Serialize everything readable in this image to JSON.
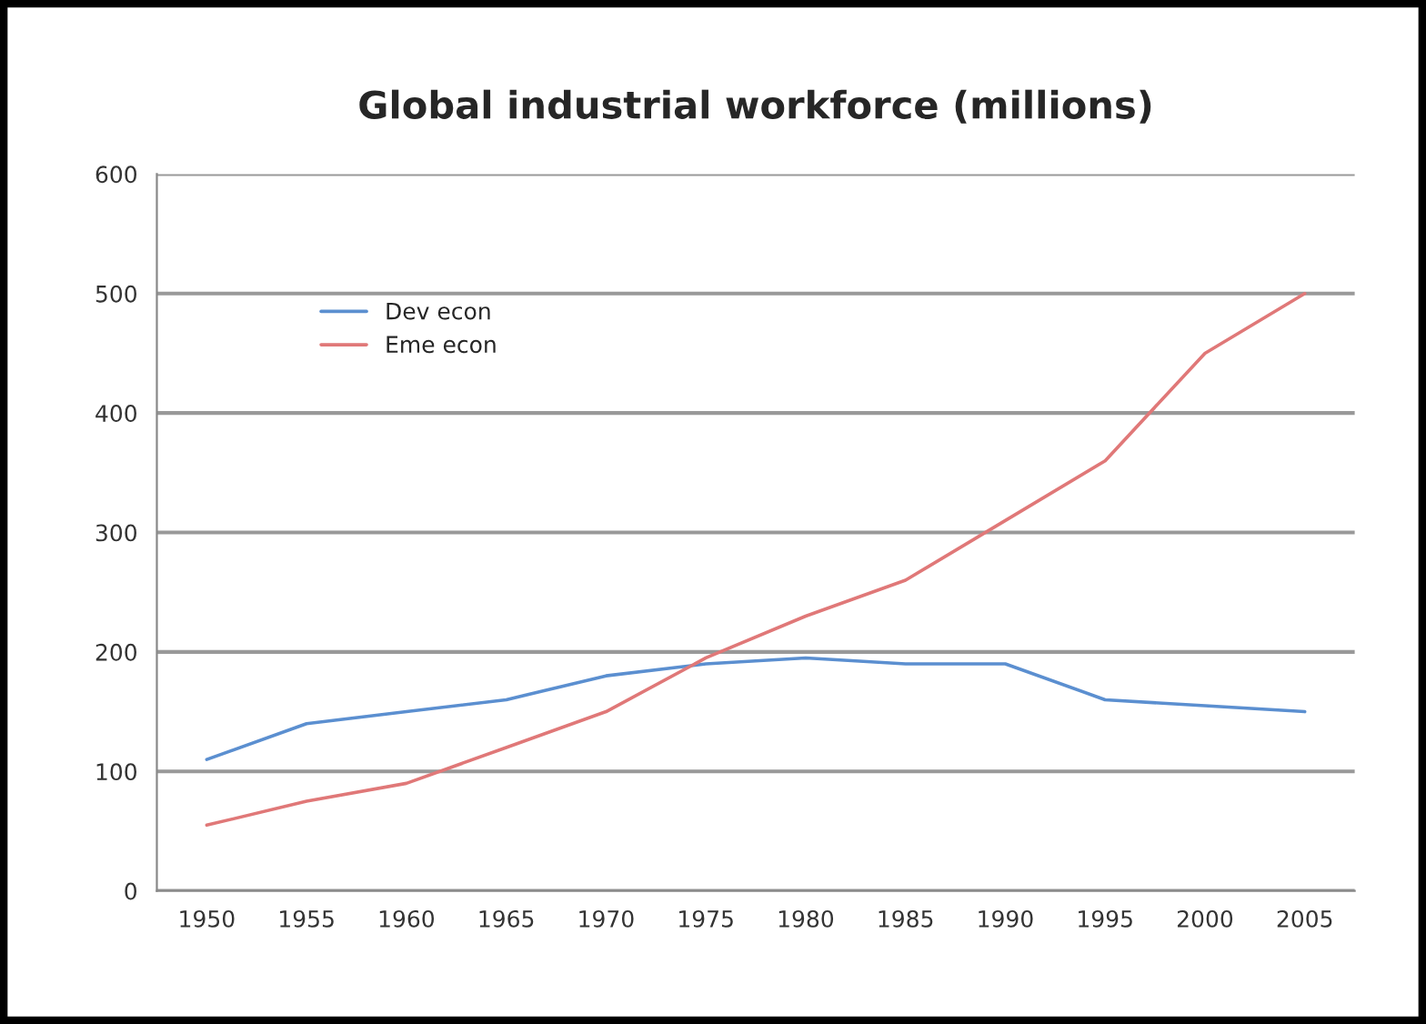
{
  "chart_data": {
    "type": "line",
    "title": "Global industrial workforce (millions)",
    "categories": [
      "1950",
      "1955",
      "1960",
      "1965",
      "1970",
      "1975",
      "1980",
      "1985",
      "1990",
      "1995",
      "2000",
      "2005"
    ],
    "series": [
      {
        "name": "Dev econ",
        "color": "#5b8fd0",
        "values": [
          110,
          140,
          150,
          160,
          180,
          190,
          195,
          190,
          190,
          160,
          155,
          150
        ]
      },
      {
        "name": "Eme econ",
        "color": "#e07878",
        "values": [
          55,
          75,
          90,
          120,
          150,
          195,
          230,
          260,
          310,
          360,
          450,
          500
        ]
      }
    ],
    "ylim": [
      0,
      600
    ],
    "yticks": [
      0,
      100,
      200,
      300,
      400,
      500,
      600
    ],
    "grid": "y",
    "legend": "top left",
    "marker": "none",
    "line_style": "solid"
  }
}
